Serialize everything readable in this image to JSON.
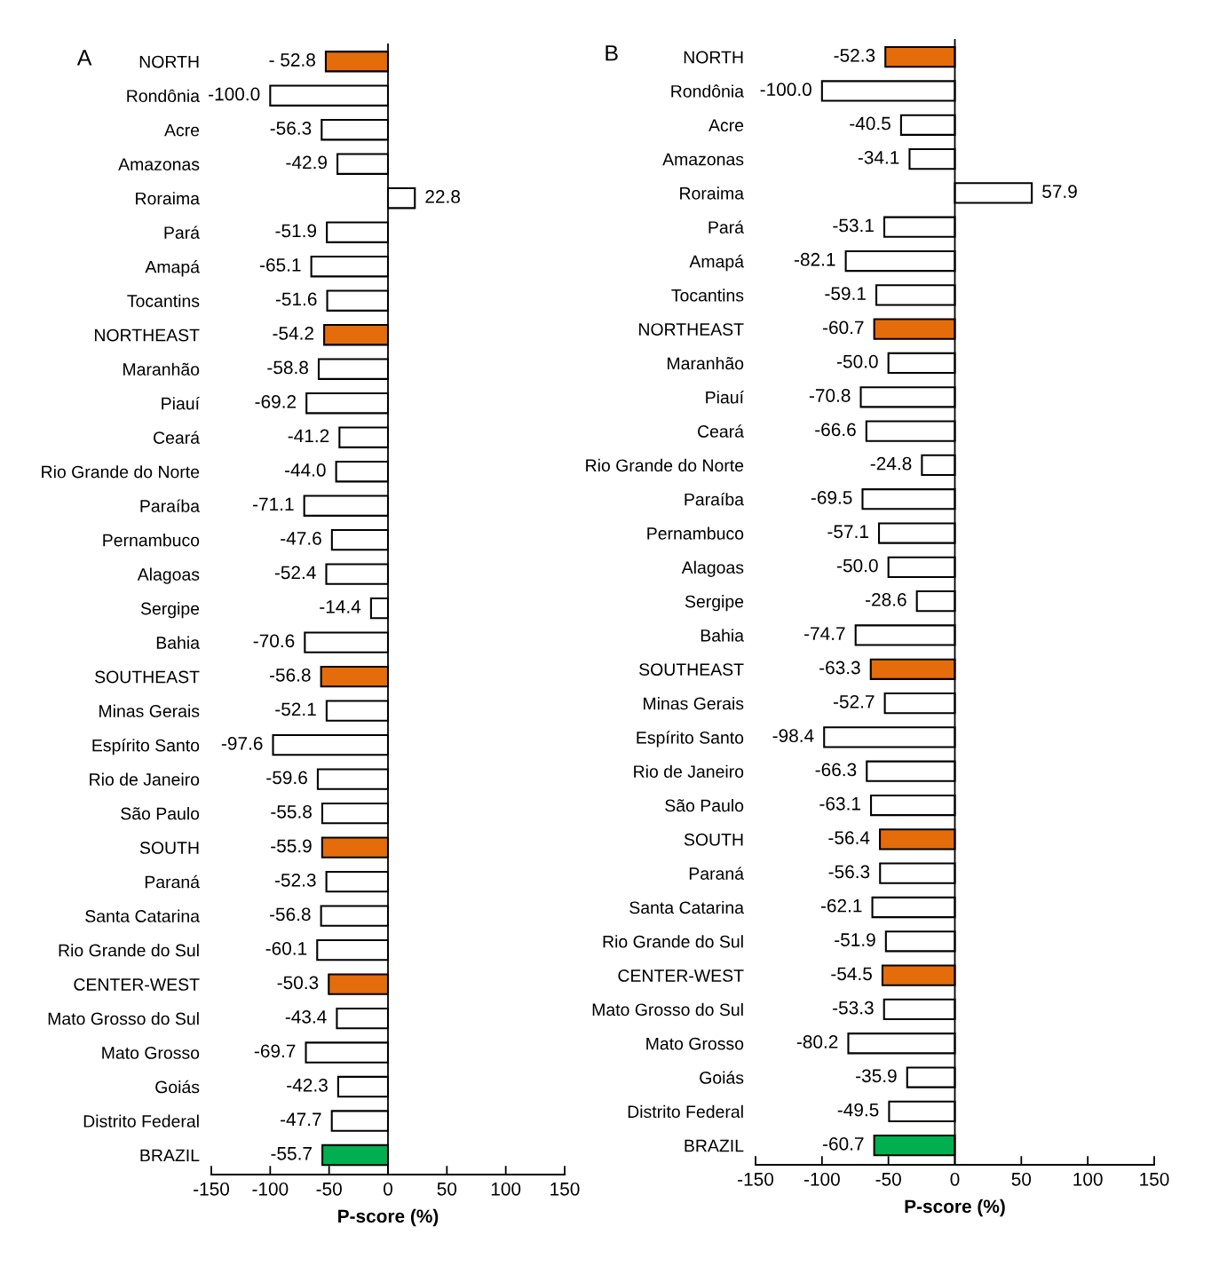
{
  "chart_data": [
    {
      "type": "bar",
      "orientation": "horizontal",
      "title": "A",
      "xlabel": "P-score (%)",
      "categories": [
        "NORTH",
        "Rondônia",
        "Acre",
        "Amazonas",
        "Roraima",
        "Pará",
        "Amapá",
        "Tocantins",
        "NORTHEAST",
        "Maranhão",
        "Piauí",
        "Ceará",
        "Rio Grande do Norte",
        "Paraíba",
        "Pernambuco",
        "Alagoas",
        "Sergipe",
        "Bahia",
        "SOUTHEAST",
        "Minas Gerais",
        "Espírito Santo",
        "Rio de Janeiro",
        "São Paulo",
        "SOUTH",
        "Paraná",
        "Santa Catarina",
        "Rio Grande do Sul",
        "CENTER-WEST",
        "Mato Grosso do Sul",
        "Mato Grosso",
        "Goiás",
        "Distrito Federal",
        "BRAZIL"
      ],
      "values": [
        -52.8,
        -100.0,
        -56.3,
        -42.9,
        22.8,
        -51.9,
        -65.1,
        -51.6,
        -54.2,
        -58.8,
        -69.2,
        -41.2,
        -44.0,
        -71.1,
        -47.6,
        -52.4,
        -14.4,
        -70.6,
        -56.8,
        -52.1,
        -97.6,
        -59.6,
        -55.8,
        -55.9,
        -52.3,
        -56.8,
        -60.1,
        -50.3,
        -43.4,
        -69.7,
        -42.3,
        -47.7,
        -55.7
      ],
      "value_labels": [
        "- 52.8",
        "-100.0",
        "-56.3",
        "-42.9",
        "22.8",
        "-51.9",
        "-65.1",
        "-51.6",
        "-54.2",
        "-58.8",
        "-69.2",
        "-41.2",
        "-44.0",
        "-71.1",
        "-47.6",
        "-52.4",
        "-14.4",
        "-70.6",
        "-56.8",
        "-52.1",
        "-97.6",
        "-59.6",
        "-55.8",
        "-55.9",
        "-52.3",
        "-56.8",
        "-60.1",
        "-50.3",
        "-43.4",
        "-69.7",
        "-42.3",
        "-47.7",
        "-55.7"
      ],
      "colors": [
        "#e46c0a",
        "#ffffff",
        "#ffffff",
        "#ffffff",
        "#ffffff",
        "#ffffff",
        "#ffffff",
        "#ffffff",
        "#e46c0a",
        "#ffffff",
        "#ffffff",
        "#ffffff",
        "#ffffff",
        "#ffffff",
        "#ffffff",
        "#ffffff",
        "#ffffff",
        "#ffffff",
        "#e46c0a",
        "#ffffff",
        "#ffffff",
        "#ffffff",
        "#ffffff",
        "#e46c0a",
        "#ffffff",
        "#ffffff",
        "#ffffff",
        "#e46c0a",
        "#ffffff",
        "#ffffff",
        "#ffffff",
        "#ffffff",
        "#00b050"
      ],
      "xlim": [
        -150,
        150
      ],
      "xticks": [
        -150,
        -100,
        -50,
        0,
        50,
        100,
        150
      ]
    },
    {
      "type": "bar",
      "orientation": "horizontal",
      "title": "B",
      "xlabel": "P-score (%)",
      "categories": [
        "NORTH",
        "Rondônia",
        "Acre",
        "Amazonas",
        "Roraima",
        "Pará",
        "Amapá",
        "Tocantins",
        "NORTHEAST",
        "Maranhão",
        "Piauí",
        "Ceará",
        "Rio Grande do Norte",
        "Paraíba",
        "Pernambuco",
        "Alagoas",
        "Sergipe",
        "Bahia",
        "SOUTHEAST",
        "Minas Gerais",
        "Espírito Santo",
        "Rio de Janeiro",
        "São Paulo",
        "SOUTH",
        "Paraná",
        "Santa Catarina",
        "Rio Grande do Sul",
        "CENTER-WEST",
        "Mato Grosso do Sul",
        "Mato Grosso",
        "Goiás",
        "Distrito Federal",
        "BRAZIL"
      ],
      "values": [
        -52.3,
        -100.0,
        -40.5,
        -34.1,
        57.9,
        -53.1,
        -82.1,
        -59.1,
        -60.7,
        -50.0,
        -70.8,
        -66.6,
        -24.8,
        -69.5,
        -57.1,
        -50.0,
        -28.6,
        -74.7,
        -63.3,
        -52.7,
        -98.4,
        -66.3,
        -63.1,
        -56.4,
        -56.3,
        -62.1,
        -51.9,
        -54.5,
        -53.3,
        -80.2,
        -35.9,
        -49.5,
        -60.7
      ],
      "value_labels": [
        "-52.3",
        "-100.0",
        "-40.5",
        "-34.1",
        "57.9",
        "-53.1",
        "-82.1",
        "-59.1",
        "-60.7",
        "-50.0",
        "-70.8",
        "-66.6",
        "-24.8",
        "-69.5",
        "-57.1",
        "-50.0",
        "-28.6",
        "-74.7",
        "-63.3",
        "-52.7",
        "-98.4",
        "-66.3",
        "-63.1",
        "-56.4",
        "-56.3",
        "-62.1",
        "-51.9",
        "-54.5",
        "-53.3",
        "-80.2",
        "-35.9",
        "-49.5",
        "-60.7"
      ],
      "colors": [
        "#e46c0a",
        "#ffffff",
        "#ffffff",
        "#ffffff",
        "#ffffff",
        "#ffffff",
        "#ffffff",
        "#ffffff",
        "#e46c0a",
        "#ffffff",
        "#ffffff",
        "#ffffff",
        "#ffffff",
        "#ffffff",
        "#ffffff",
        "#ffffff",
        "#ffffff",
        "#ffffff",
        "#e46c0a",
        "#ffffff",
        "#ffffff",
        "#ffffff",
        "#ffffff",
        "#e46c0a",
        "#ffffff",
        "#ffffff",
        "#ffffff",
        "#e46c0a",
        "#ffffff",
        "#ffffff",
        "#ffffff",
        "#ffffff",
        "#00b050"
      ],
      "xlim": [
        -150,
        150
      ],
      "xticks": [
        -150,
        -100,
        -50,
        0,
        50,
        100,
        150
      ]
    }
  ]
}
